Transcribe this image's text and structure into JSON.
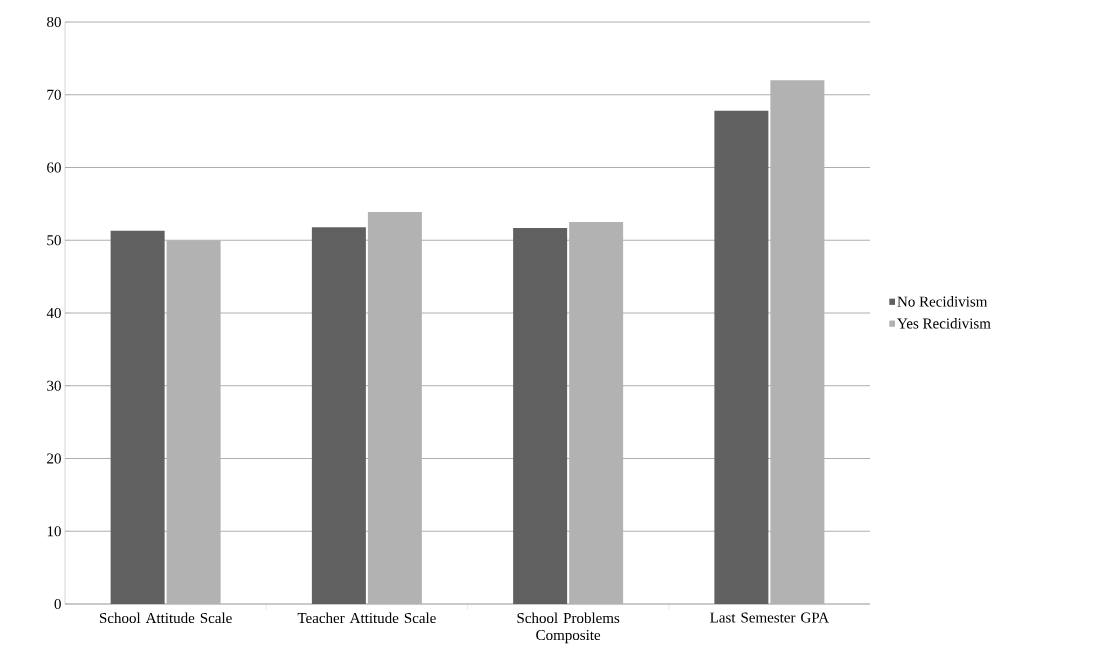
{
  "chart_data": {
    "type": "bar",
    "categories": [
      "School Attitude Scale",
      "Teacher Attitude Scale",
      "School Problems Composite",
      "Last Semester GPA"
    ],
    "series": [
      {
        "name": "No Recidivism",
        "color": "#606060",
        "values": [
          51.3,
          51.8,
          51.7,
          67.8
        ]
      },
      {
        "name": "Yes Recidivism",
        "color": "#b2b2b2",
        "values": [
          50.0,
          53.9,
          52.5,
          72.0
        ]
      }
    ],
    "ylim": [
      0,
      80
    ],
    "yticks": [
      0,
      10,
      20,
      30,
      40,
      50,
      60,
      70,
      80
    ],
    "grid": "y",
    "legend": "right"
  }
}
